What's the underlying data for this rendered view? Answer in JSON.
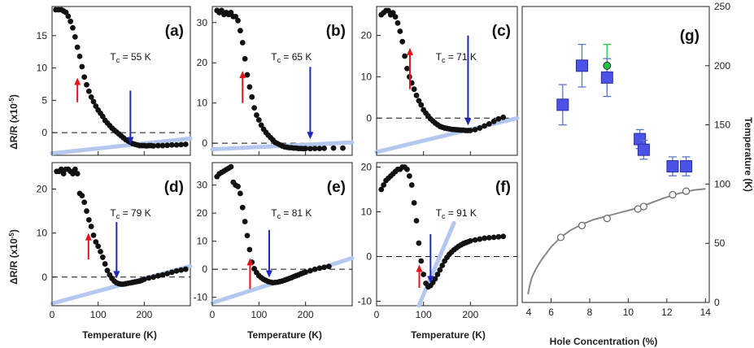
{
  "colors": {
    "data": "#111111",
    "red_arrow": "#e0161c",
    "blue_arrow": "#1f27b8",
    "fit_line": "#b3c7ef",
    "square_fill": "#4a52e8",
    "square_edge": "#2a2f9e",
    "error_bar": "#5b76c6",
    "green_marker": "#24c04c",
    "green_error": "#3fc45a",
    "gray_curve": "#888888"
  },
  "labels": {
    "x_label": "Temperature (K)",
    "y_label": "ΔR/R (x10",
    "y_label_exp": "-5",
    "y_label_end": ")",
    "tc_prefix": "T",
    "tc_sub": "c",
    "g_xlabel": "Hole Concentration (%)",
    "g_ylabel": "Temperature (K)"
  },
  "chart_data": [
    {
      "type": "scatter",
      "label": "(a)",
      "tc_text": "= 55 K",
      "xlim": [
        0,
        300
      ],
      "ylim": [
        -3.5,
        19.5
      ],
      "yticks": [
        0,
        5,
        10,
        15
      ],
      "xticks": [
        0,
        100,
        200
      ],
      "show_xticks": false,
      "fit_line": [
        [
          0,
          -3.2
        ],
        [
          300,
          -0.9
        ]
      ],
      "red_arrow": {
        "x": 55,
        "from": 4.7,
        "to": 8.5
      },
      "blue_arrow": {
        "x": 170,
        "from": 6.5,
        "to": -1.8
      },
      "x": [
        8,
        14,
        20,
        25,
        30,
        35,
        40,
        45,
        50,
        55,
        60,
        65,
        70,
        75,
        80,
        85,
        90,
        95,
        100,
        105,
        110,
        115,
        120,
        125,
        130,
        135,
        140,
        145,
        150,
        155,
        160,
        165,
        170,
        175,
        180,
        185,
        190,
        195,
        200,
        205,
        210,
        215,
        220,
        230,
        240,
        250,
        260,
        270,
        280,
        290
      ],
      "y": [
        19,
        19,
        19,
        18.8,
        18.6,
        18,
        17.2,
        16.2,
        14.8,
        13.2,
        11.8,
        10.2,
        8.6,
        7.4,
        6.4,
        5.5,
        4.8,
        4.1,
        3.5,
        3,
        2.5,
        1.9,
        1.5,
        1.1,
        0.7,
        0.4,
        0.1,
        -0.2,
        -0.5,
        -0.8,
        -1.1,
        -1.3,
        -1.5,
        -1.7,
        -1.8,
        -1.9,
        -2,
        -2,
        -2,
        -2.05,
        -2,
        -2,
        -2.05,
        -2,
        -2,
        -1.95,
        -1.9,
        -1.9,
        -1.85,
        -1.8
      ]
    },
    {
      "type": "scatter",
      "label": "(b)",
      "tc_text": "= 65 K",
      "xlim": [
        0,
        300
      ],
      "ylim": [
        -3,
        34
      ],
      "yticks": [
        0,
        10,
        20,
        30
      ],
      "xticks": [
        0,
        100,
        200
      ],
      "show_xticks": false,
      "fit_line": [
        [
          0,
          -1.5
        ],
        [
          300,
          0.2
        ]
      ],
      "red_arrow": {
        "x": 65,
        "from": 10,
        "to": 18
      },
      "blue_arrow": {
        "x": 210,
        "from": 19,
        "to": 1
      },
      "x": [
        10,
        15,
        20,
        25,
        30,
        35,
        40,
        45,
        50,
        55,
        60,
        65,
        70,
        75,
        80,
        85,
        90,
        95,
        100,
        105,
        110,
        115,
        120,
        125,
        130,
        135,
        140,
        145,
        150,
        155,
        160,
        165,
        170,
        175,
        180,
        185,
        190,
        195,
        200,
        210,
        220,
        230,
        240,
        260,
        280
      ],
      "y": [
        33,
        32.5,
        33,
        32,
        32.5,
        32,
        32.5,
        31.5,
        31.5,
        30.5,
        28,
        25,
        21,
        17,
        14,
        11.5,
        8.8,
        7,
        5.8,
        4.5,
        3.5,
        2.7,
        2,
        1.4,
        0.8,
        0.2,
        -0.1,
        -0.4,
        -0.7,
        -0.9,
        -1,
        -1.1,
        -1.1,
        -1.2,
        -1.2,
        -1.3,
        -1.3,
        -1.35,
        -1.3,
        -1.35,
        -1.3,
        -1.3,
        -1.25,
        -1.2,
        -1.2
      ]
    },
    {
      "type": "scatter",
      "label": "(c)",
      "tc_text": "= 71 K",
      "xlim": [
        0,
        300
      ],
      "ylim": [
        -9,
        27
      ],
      "yticks": [
        0,
        10,
        20
      ],
      "xticks": [
        0,
        100,
        200
      ],
      "show_xticks": false,
      "fit_line": [
        [
          0,
          -8.2
        ],
        [
          300,
          0
        ]
      ],
      "red_arrow": {
        "x": 71,
        "from": 7,
        "to": 17
      },
      "blue_arrow": {
        "x": 195,
        "from": 20,
        "to": -1.8
      },
      "x": [
        10,
        15,
        20,
        25,
        30,
        35,
        40,
        45,
        50,
        55,
        60,
        65,
        70,
        75,
        80,
        85,
        90,
        95,
        100,
        105,
        110,
        115,
        120,
        125,
        130,
        135,
        140,
        145,
        150,
        155,
        160,
        165,
        170,
        175,
        180,
        185,
        190,
        195,
        200,
        210,
        220,
        230,
        240,
        250,
        260,
        270
      ],
      "y": [
        25,
        25.5,
        26,
        26,
        25,
        25.5,
        24.5,
        23,
        21,
        18.5,
        15,
        12,
        10,
        8.5,
        7,
        5.5,
        4.2,
        3.2,
        2,
        1.2,
        0.5,
        -0.2,
        -0.7,
        -1.2,
        -1.6,
        -2,
        -2.2,
        -2.4,
        -2.5,
        -2.6,
        -2.7,
        -2.75,
        -2.8,
        -2.85,
        -2.9,
        -2.9,
        -3,
        -3,
        -3,
        -2.8,
        -2.4,
        -1.9,
        -1.4,
        -0.8,
        -0.2,
        0.2
      ]
    },
    {
      "type": "scatter",
      "label": "(d)",
      "tc_text": "= 79 K",
      "xlim": [
        0,
        300
      ],
      "ylim": [
        -6.5,
        26
      ],
      "yticks": [
        0,
        10,
        20
      ],
      "xticks": [
        0,
        100,
        200
      ],
      "show_xticks": true,
      "fit_line": [
        [
          0,
          -6
        ],
        [
          300,
          2.5
        ]
      ],
      "red_arrow": {
        "x": 79,
        "from": 4,
        "to": 10
      },
      "blue_arrow": {
        "x": 140,
        "from": 12.5,
        "to": -0.3
      },
      "x": [
        10,
        15,
        20,
        25,
        30,
        35,
        40,
        45,
        50,
        55,
        60,
        65,
        70,
        75,
        80,
        85,
        90,
        95,
        100,
        105,
        110,
        115,
        120,
        125,
        130,
        135,
        140,
        145,
        150,
        155,
        160,
        165,
        170,
        175,
        180,
        185,
        190,
        195,
        200,
        210,
        220,
        230,
        240,
        250,
        260,
        270,
        280,
        290
      ],
      "y": [
        24,
        24,
        24.5,
        23.5,
        24.5,
        24.5,
        24,
        23.5,
        24.5,
        23.5,
        19,
        18.5,
        17,
        15,
        13,
        11.5,
        9.5,
        8,
        7,
        5.8,
        4.5,
        3,
        1.5,
        0.5,
        -0.3,
        -0.9,
        -1.3,
        -1.5,
        -1.6,
        -1.6,
        -1.5,
        -1.4,
        -1.3,
        -1.2,
        -1.1,
        -1,
        -0.9,
        -0.7,
        -0.5,
        -0.2,
        0,
        0.3,
        0.5,
        0.8,
        1.1,
        1.4,
        1.6,
        1.8
      ]
    },
    {
      "type": "scatter",
      "label": "(e)",
      "tc_text": "= 81 K",
      "xlim": [
        0,
        300
      ],
      "ylim": [
        -13,
        38
      ],
      "yticks": [
        -10,
        0,
        10,
        20,
        30
      ],
      "xticks": [
        0,
        100,
        200
      ],
      "show_xticks": true,
      "fit_line": [
        [
          0,
          -12
        ],
        [
          300,
          4
        ]
      ],
      "red_arrow": {
        "x": 81,
        "from": -7,
        "to": 4
      },
      "blue_arrow": {
        "x": 122,
        "from": 14,
        "to": -3
      },
      "x": [
        10,
        15,
        20,
        25,
        30,
        35,
        40,
        45,
        50,
        55,
        60,
        65,
        70,
        75,
        80,
        85,
        90,
        95,
        100,
        105,
        110,
        115,
        120,
        125,
        130,
        135,
        140,
        145,
        150,
        155,
        160,
        165,
        170,
        175,
        180,
        185,
        190,
        195,
        200,
        210,
        220,
        230,
        240,
        250
      ],
      "y": [
        33,
        34,
        34.5,
        35,
        35.5,
        36,
        36.5,
        31,
        30,
        29.5,
        27,
        22,
        17,
        12,
        7,
        2.5,
        0.2,
        -1.2,
        -2.3,
        -3,
        -3.6,
        -4,
        -4.4,
        -4.6,
        -4.8,
        -4.7,
        -4.6,
        -4.4,
        -4.2,
        -3.9,
        -3.6,
        -3.3,
        -3,
        -2.6,
        -2.3,
        -2,
        -1.6,
        -1.3,
        -1,
        -0.5,
        0,
        0.4,
        0.7,
        1
      ]
    },
    {
      "type": "scatter",
      "label": "(f)",
      "tc_text": "= 91 K",
      "xlim": [
        0,
        300
      ],
      "ylim": [
        -11,
        21
      ],
      "yticks": [
        -10,
        0,
        10,
        20
      ],
      "xticks": [
        0,
        100,
        200
      ],
      "show_xticks": true,
      "fit_line": [
        [
          90,
          -11
        ],
        [
          165,
          7.5
        ]
      ],
      "red_arrow": {
        "x": 91,
        "from": -7,
        "to": -1.8
      },
      "blue_arrow": {
        "x": 115,
        "from": 5,
        "to": -6
      },
      "x": [
        10,
        15,
        20,
        25,
        30,
        35,
        40,
        45,
        50,
        55,
        60,
        65,
        70,
        75,
        80,
        85,
        90,
        95,
        100,
        105,
        110,
        115,
        120,
        125,
        130,
        135,
        140,
        145,
        150,
        155,
        160,
        165,
        170,
        175,
        180,
        185,
        190,
        195,
        200,
        210,
        220,
        230,
        240,
        250,
        260,
        270
      ],
      "y": [
        15,
        16,
        17,
        17.5,
        18,
        18.5,
        19,
        19.5,
        19.5,
        20,
        20,
        19.5,
        18,
        16,
        12,
        8,
        3,
        -1,
        -4,
        -6,
        -6.8,
        -6.5,
        -5.8,
        -5,
        -4,
        -3,
        -2,
        -1,
        -0.2,
        0.5,
        1,
        1.5,
        1.9,
        2.3,
        2.6,
        2.9,
        3.1,
        3.3,
        3.5,
        3.7,
        3.9,
        4.1,
        4.2,
        4.3,
        4.4,
        4.5
      ]
    },
    {
      "type": "scatter",
      "label": "(g)",
      "xlabel": "Hole Concentration (%)",
      "ylabel": "Temperature (K)",
      "xlim": [
        4.5,
        14.2
      ],
      "ylim": [
        0,
        250
      ],
      "xticks": [
        4,
        6,
        8,
        10,
        12,
        14
      ],
      "yticks": [
        0,
        50,
        100,
        150,
        200,
        250
      ],
      "squares": {
        "x": [
          6.6,
          7.6,
          8.9,
          10.6,
          10.8,
          12.3,
          13.0
        ],
        "y": [
          167,
          200,
          190,
          138,
          129,
          115,
          115
        ],
        "err": [
          17,
          18,
          16,
          8,
          8,
          8,
          8
        ]
      },
      "green_point": {
        "x": 8.9,
        "y": 200,
        "err": 18
      },
      "open_circles": {
        "x": [
          6.5,
          7.6,
          8.9,
          10.5,
          10.8,
          12.3,
          13.0
        ],
        "y": [
          55,
          65,
          71,
          79,
          81,
          91,
          94
        ]
      },
      "dome_curve": {
        "x": [
          4.8,
          4.9,
          5.0,
          5.2,
          5.5,
          6.0,
          6.5,
          7.0,
          7.6,
          8.2,
          8.9,
          9.6,
          10.3,
          11.0,
          11.8,
          12.6,
          13.4,
          14.0
        ],
        "y": [
          7,
          15,
          21,
          28,
          36,
          47,
          55,
          61,
          66,
          70,
          73,
          76,
          79,
          83,
          88,
          92,
          95,
          96
        ]
      }
    }
  ]
}
